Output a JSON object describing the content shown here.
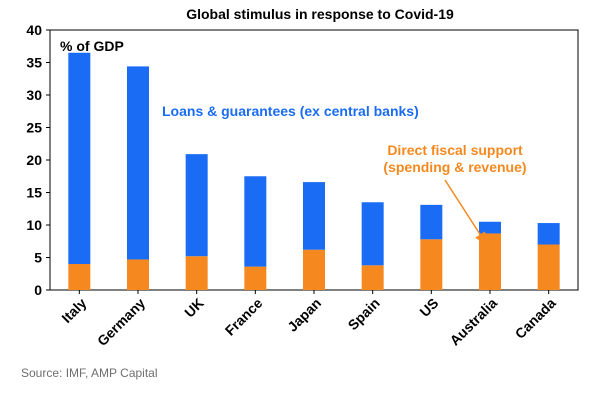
{
  "chart_data": {
    "type": "bar",
    "stacked": true,
    "title": "Global stimulus in response to Covid-19",
    "ylabel": "% of GDP",
    "ylim": [
      0,
      40
    ],
    "yticks": [
      0,
      5,
      10,
      15,
      20,
      25,
      30,
      35,
      40
    ],
    "grid": false,
    "categories": [
      "Italy",
      "Germany",
      "UK",
      "France",
      "Japan",
      "Spain",
      "US",
      "Australia",
      "Canada"
    ],
    "series": [
      {
        "name": "Direct fiscal support (spending & revenue)",
        "name_lines": [
          "Direct fiscal support",
          "(spending & revenue)"
        ],
        "color": "#f5891f",
        "values": [
          4.0,
          4.7,
          5.2,
          3.6,
          6.2,
          3.8,
          7.8,
          8.7,
          7.0
        ]
      },
      {
        "name": "Loans & guarantees (ex central banks)",
        "name_lines": [
          "Loans & guarantees (ex central banks)"
        ],
        "color": "#1a6cf5",
        "values": [
          32.5,
          29.7,
          15.7,
          13.9,
          10.4,
          9.7,
          5.3,
          1.8,
          3.3
        ]
      }
    ]
  },
  "source": "Source: IMF, AMP Capital"
}
